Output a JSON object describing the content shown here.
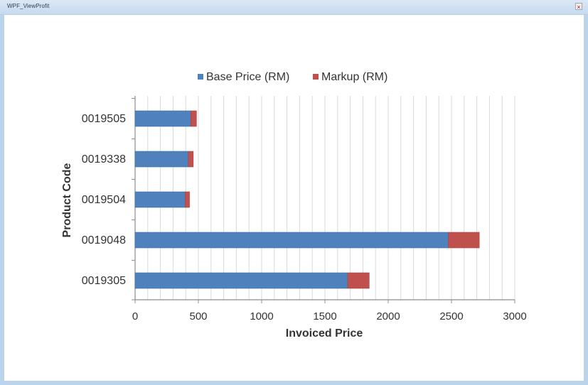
{
  "window": {
    "title": "WPF_ViewProfit",
    "close_icon": "close-icon"
  },
  "chart_data": {
    "type": "bar",
    "orientation": "horizontal",
    "stacked": true,
    "categories": [
      "0019505",
      "0019338",
      "0019504",
      "0019048",
      "0019305"
    ],
    "series": [
      {
        "name": "Base Price (RM)",
        "values": [
          440,
          420,
          395,
          2475,
          1680
        ],
        "color": "#4f81bd"
      },
      {
        "name": "Markup (RM)",
        "values": [
          45,
          40,
          35,
          245,
          170
        ],
        "color": "#c0504d"
      }
    ],
    "title": "",
    "xlabel": "Invoiced Price",
    "ylabel": "Product Code",
    "xlim": [
      0,
      3000
    ],
    "x_ticks": [
      "0",
      "500",
      "1000",
      "1500",
      "2000",
      "2500",
      "3000"
    ],
    "grid": true,
    "legend_position": "top-center"
  }
}
